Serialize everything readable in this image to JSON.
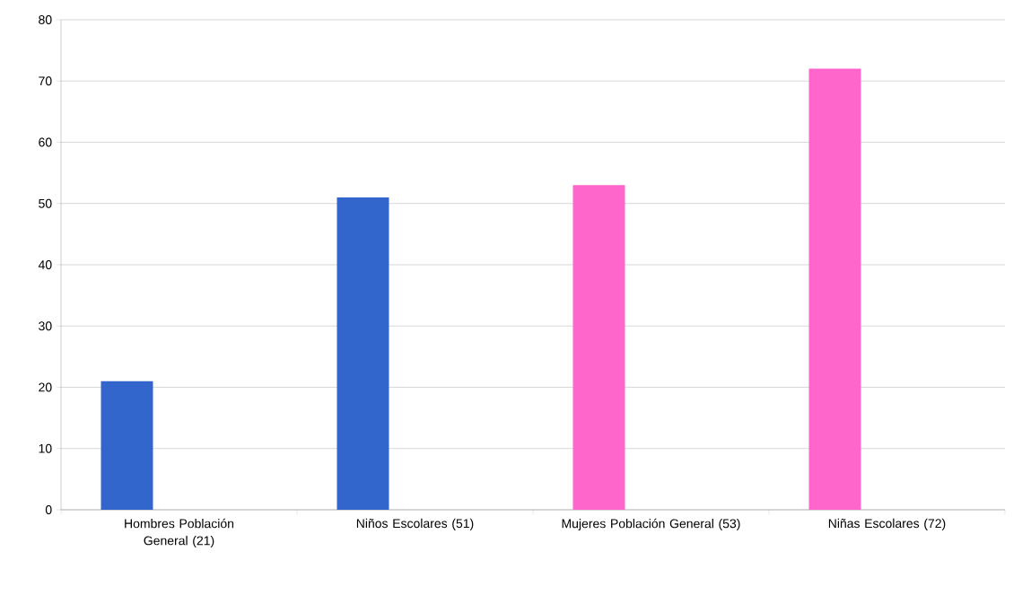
{
  "chart_data": {
    "type": "bar",
    "categories": [
      "Hombres Población General (21)",
      "Niños Escolares (51)",
      "Mujeres Población General (53)",
      "Niñas Escolares (72)"
    ],
    "values": [
      21,
      51,
      53,
      72
    ],
    "colors": [
      "#3366cc",
      "#3366cc",
      "#ff66cc",
      "#ff66cc"
    ],
    "ylim": [
      0,
      80
    ],
    "yticks": [
      0,
      10,
      20,
      30,
      40,
      50,
      60,
      70,
      80
    ],
    "grid": "y"
  }
}
